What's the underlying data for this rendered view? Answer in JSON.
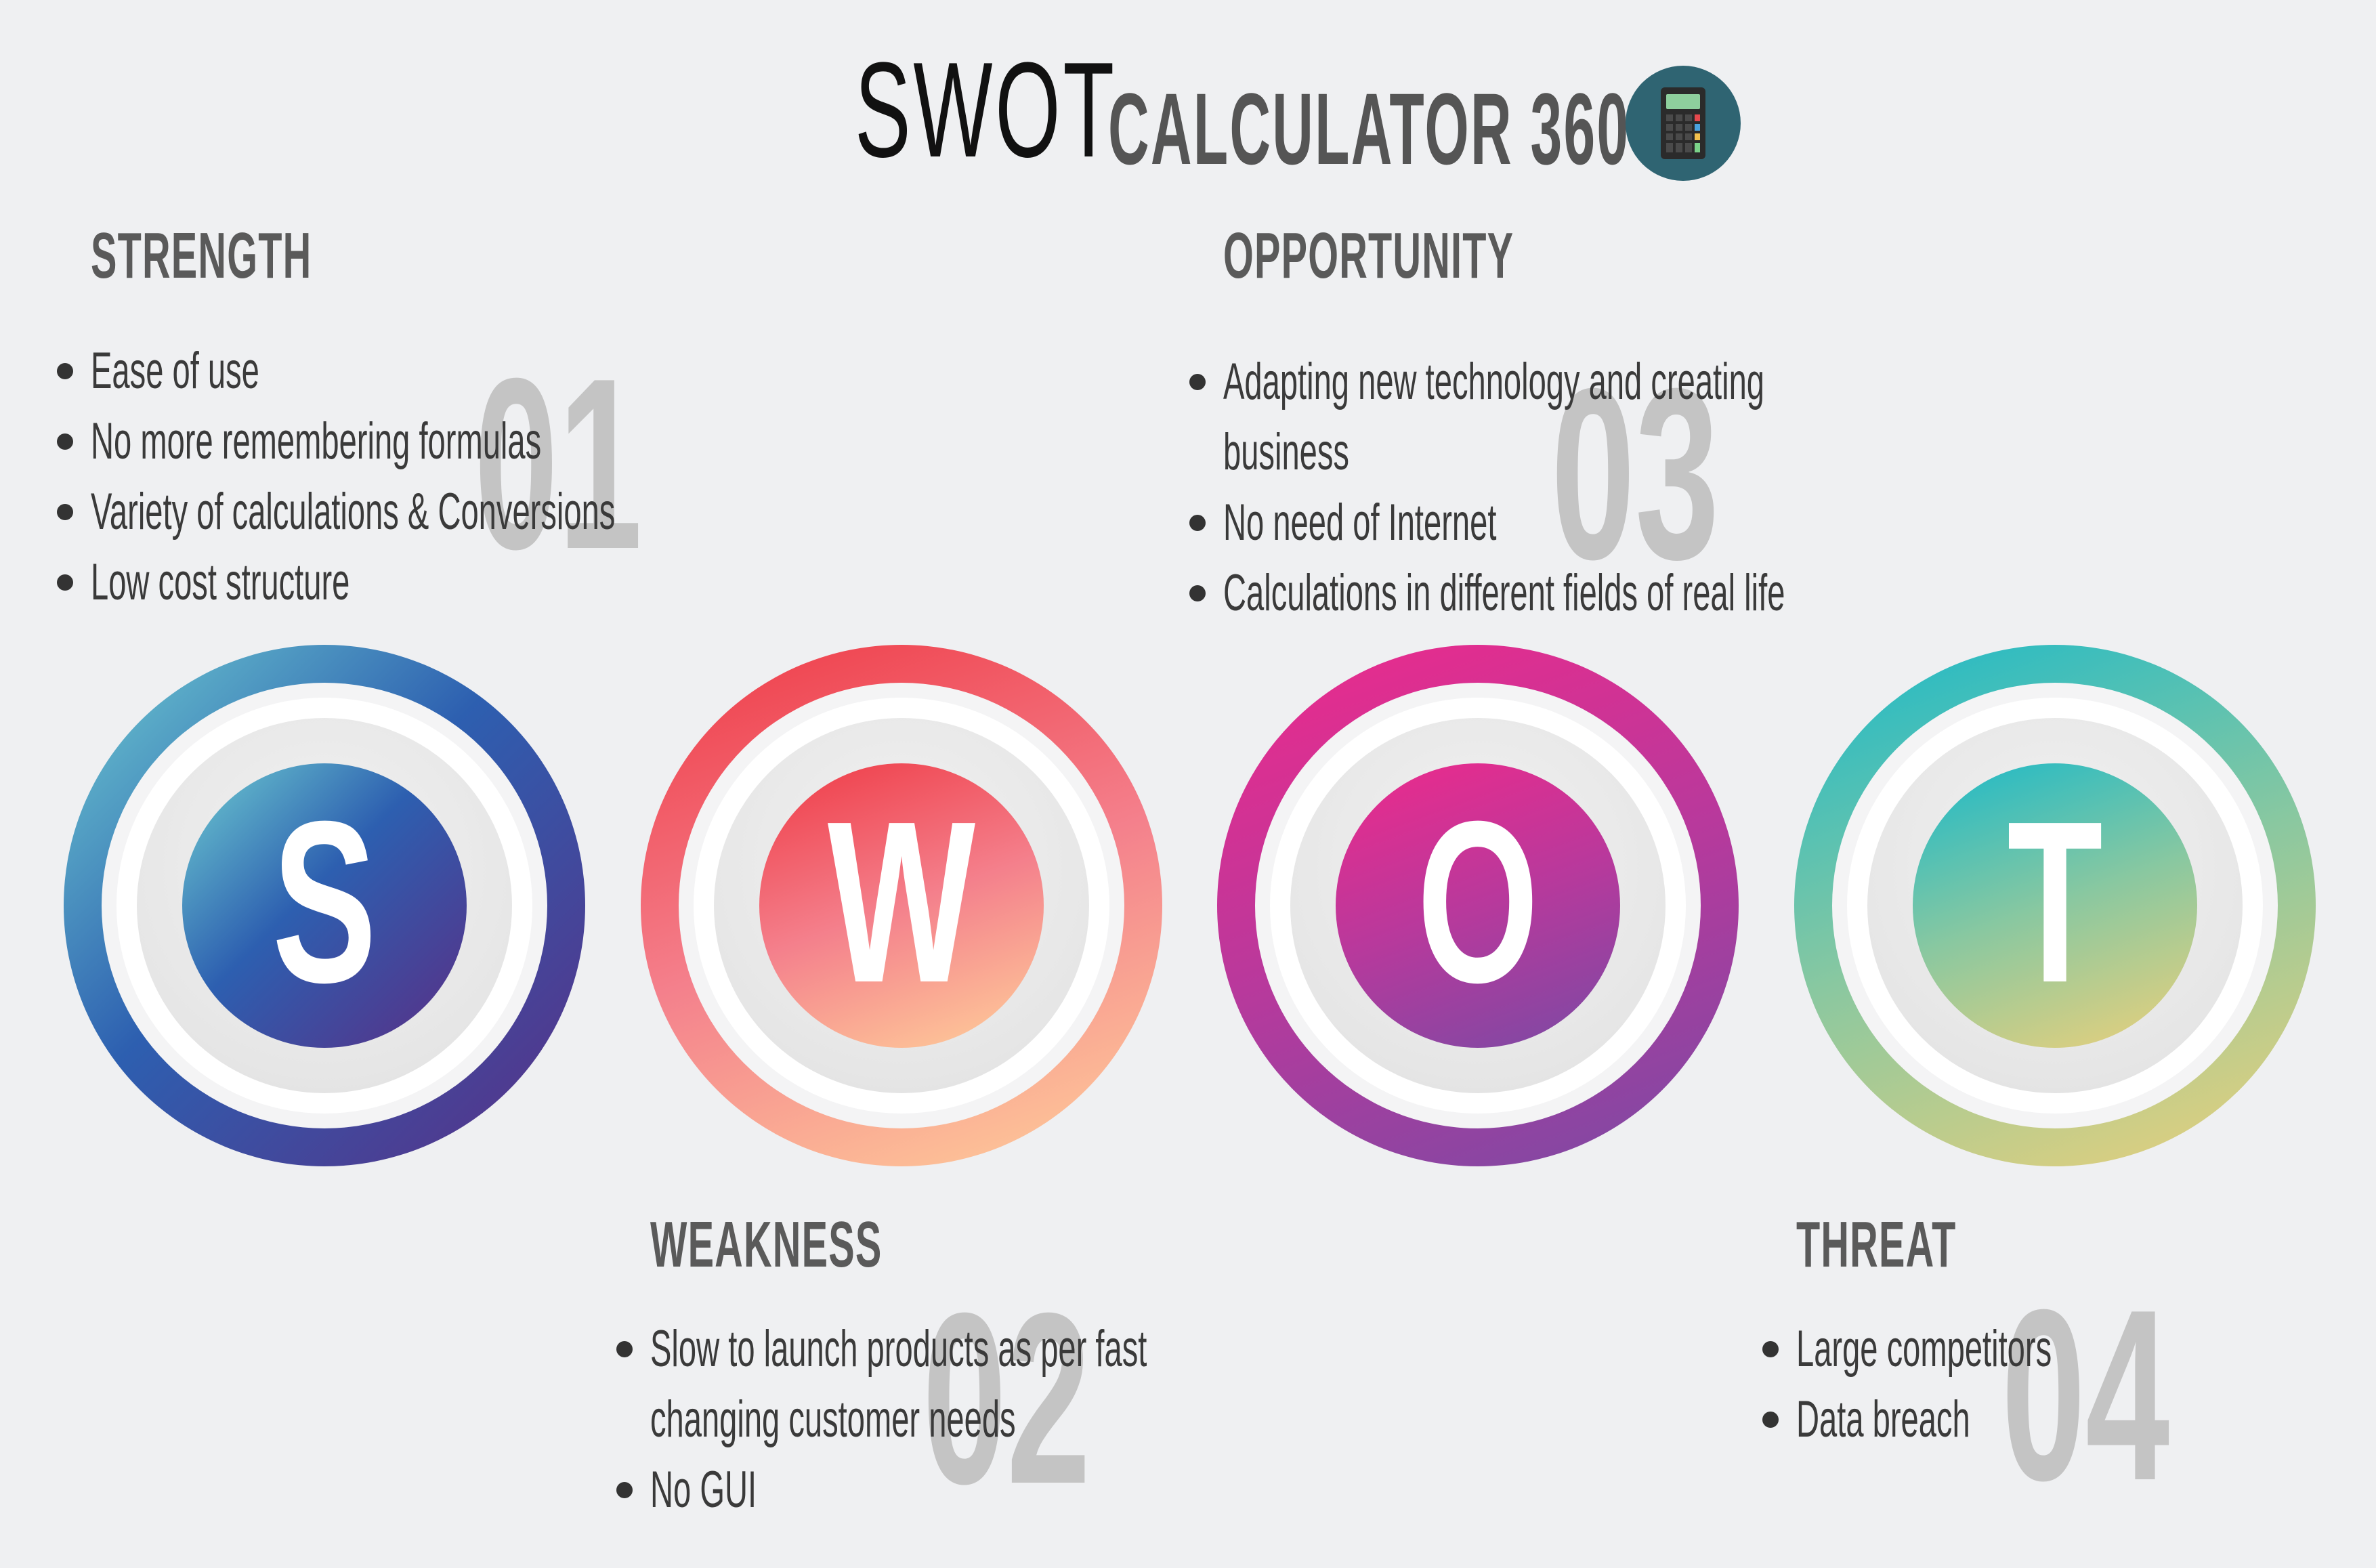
{
  "header": {
    "title_main": "SWOT",
    "title_sub": "CALCULATOR 360",
    "icon": "calculator-icon"
  },
  "sections": {
    "strength": {
      "heading": "STRENGTH",
      "number": "01",
      "items": [
        "Ease of use",
        "No more remembering formulas",
        "Variety of calculations & Conversions",
        "Low cost structure"
      ]
    },
    "weakness": {
      "heading": "WEAKNESS",
      "number": "02",
      "items": [
        "Slow to launch products as per fast",
        "changing customer needs",
        "No GUI"
      ]
    },
    "opportunity": {
      "heading": "OPPORTUNITY",
      "number": "03",
      "items": [
        "Adapting new technology and creating",
        "business",
        "No need of Internet",
        "Calculations in different fields of real life"
      ]
    },
    "threat": {
      "heading": "THREAT",
      "number": "04",
      "items": [
        "Large competitors",
        "Data breach"
      ]
    }
  },
  "circles": [
    {
      "letter": "S",
      "colors": [
        "#6fcfd2",
        "#2d5fb0",
        "#5a2e85"
      ]
    },
    {
      "letter": "W",
      "colors": [
        "#ef3a45",
        "#f4808c",
        "#ffd09a"
      ]
    },
    {
      "letter": "O",
      "colors": [
        "#ee2a8b",
        "#b8399c",
        "#7a4aa4"
      ]
    },
    {
      "letter": "T",
      "colors": [
        "#1ab9c9",
        "#8ac8a0",
        "#ecd07a"
      ]
    }
  ],
  "colors": {
    "background": "#eff0f2",
    "heading": "#5a5a5a",
    "big_number": "#c4c4c4"
  }
}
